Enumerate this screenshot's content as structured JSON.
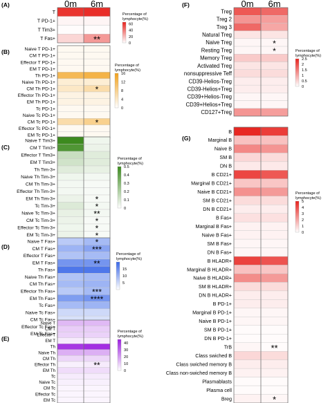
{
  "columns": [
    "0m",
    "6m"
  ],
  "legend_title_lines": [
    "Percentage of",
    "lymphocyte(%)"
  ],
  "chart_data": [
    {
      "type": "heatmap",
      "panel": "(A)",
      "colors": [
        "#ffffff",
        "#e8231e"
      ],
      "vmin": 0,
      "vmax": 65,
      "legend_ticks": [
        60,
        40,
        20,
        0
      ],
      "rows": [
        {
          "label": "T",
          "values": [
            60,
            62
          ],
          "mark": ""
        },
        {
          "label": "T PD-1+",
          "values": [
            3,
            3
          ],
          "mark": ""
        },
        {
          "label": "T Tim3+",
          "values": [
            1,
            1
          ],
          "mark": ""
        },
        {
          "label": "T Fas+",
          "values": [
            12,
            30
          ],
          "mark": "**"
        }
      ]
    },
    {
      "type": "heatmap",
      "panel": "(B)",
      "colors": [
        "#ffffff",
        "#f2a21c"
      ],
      "vmin": 0,
      "vmax": 16,
      "legend_ticks": [
        16,
        12,
        8,
        4,
        0
      ],
      "rows": [
        {
          "label": "Naive T PD-1+",
          "values": [
            1,
            1
          ],
          "mark": ""
        },
        {
          "label": "CM T PD-1+",
          "values": [
            1,
            1
          ],
          "mark": ""
        },
        {
          "label": "Effector T PD-1+",
          "values": [
            1,
            1
          ],
          "mark": ""
        },
        {
          "label": "EM T PD-1+",
          "values": [
            1,
            1
          ],
          "mark": ""
        },
        {
          "label": "Th PD-1+",
          "values": [
            12,
            13
          ],
          "mark": ""
        },
        {
          "label": "Naive Th PD-1+",
          "values": [
            3,
            3
          ],
          "mark": ""
        },
        {
          "label": "CM Th PD-1+",
          "values": [
            4,
            6
          ],
          "mark": "*"
        },
        {
          "label": "Effector Th PD-1+",
          "values": [
            2,
            2
          ],
          "mark": ""
        },
        {
          "label": "EM Th PD-1+",
          "values": [
            2,
            2
          ],
          "mark": ""
        },
        {
          "label": "Tc PD-1+",
          "values": [
            1,
            1
          ],
          "mark": ""
        },
        {
          "label": "Naive Tc PD-1+",
          "values": [
            1,
            1
          ],
          "mark": ""
        },
        {
          "label": "CM Tc PD-1+",
          "values": [
            6,
            8
          ],
          "mark": "*"
        },
        {
          "label": "Effector Tc PD-1+",
          "values": [
            1,
            1
          ],
          "mark": ""
        },
        {
          "label": "EM Tc PD-1+",
          "values": [
            1,
            1
          ],
          "mark": ""
        }
      ]
    },
    {
      "type": "heatmap",
      "panel": "(C)",
      "colors": [
        "#ffffff",
        "#3c8a1e"
      ],
      "vmin": 0,
      "vmax": 0.5,
      "legend_ticks": [
        0.5,
        0.4,
        0.3,
        0.2,
        0.1,
        0.0
      ],
      "rows": [
        {
          "label": "Naive T Tim3+",
          "values": [
            0.5,
            0.04
          ],
          "mark": ""
        },
        {
          "label": "CM T Tim3+",
          "values": [
            0.45,
            0.05
          ],
          "mark": ""
        },
        {
          "label": "Effector T Tim3+",
          "values": [
            0.14,
            0.08
          ],
          "mark": ""
        },
        {
          "label": "EM T Tim3+",
          "values": [
            0.12,
            0.08
          ],
          "mark": ""
        },
        {
          "label": "Th Tim-3+",
          "values": [
            0.08,
            0.06
          ],
          "mark": ""
        },
        {
          "label": "Naive Th Tim-3+",
          "values": [
            0.04,
            0.03
          ],
          "mark": ""
        },
        {
          "label": "CM Th Tim-3+",
          "values": [
            0.03,
            0.02
          ],
          "mark": ""
        },
        {
          "label": "Effector Th Tim-3+",
          "values": [
            0.03,
            0.02
          ],
          "mark": ""
        },
        {
          "label": "EM Th Tim-3+",
          "values": [
            0.05,
            0.02
          ],
          "mark": "*"
        },
        {
          "label": "Tc Tim-3+",
          "values": [
            0.09,
            0.03
          ],
          "mark": "*"
        },
        {
          "label": "Naive Tc Tim-3+",
          "values": [
            0.06,
            0.03
          ],
          "mark": "**"
        },
        {
          "label": "CM Tc Tim-3+",
          "values": [
            0.05,
            0.02
          ],
          "mark": "*"
        },
        {
          "label": "Effector Tc Tim-3+",
          "values": [
            0.04,
            0.02
          ],
          "mark": "*"
        },
        {
          "label": "EM Tc Tim-3+",
          "values": [
            0.05,
            0.02
          ],
          "mark": "*"
        }
      ]
    },
    {
      "type": "heatmap",
      "panel": "(D)",
      "colors": [
        "#ffffff",
        "#3a68e8"
      ],
      "vmin": 0,
      "vmax": 20,
      "legend_ticks": [
        15,
        10,
        5
      ],
      "rows": [
        {
          "label": "Naive T Fas+",
          "values": [
            7,
            9
          ],
          "mark": "*"
        },
        {
          "label": "CM T Fas+",
          "values": [
            10,
            12
          ],
          "mark": "***"
        },
        {
          "label": "Effector T Fas+",
          "values": [
            8,
            9
          ],
          "mark": ""
        },
        {
          "label": "EM T Fas+",
          "values": [
            14,
            14
          ],
          "mark": "**"
        },
        {
          "label": "Th Fas+",
          "values": [
            18,
            18
          ],
          "mark": ""
        },
        {
          "label": "Naive Th Fas+",
          "values": [
            8,
            9
          ],
          "mark": ""
        },
        {
          "label": "CM Th Fas+",
          "values": [
            9,
            10
          ],
          "mark": ""
        },
        {
          "label": "Effector Th Fas+",
          "values": [
            7,
            9
          ],
          "mark": "***"
        },
        {
          "label": "EM Th Fas+",
          "values": [
            13,
            14
          ],
          "mark": "****"
        },
        {
          "label": "Tc Fas+",
          "values": [
            9,
            10
          ],
          "mark": ""
        },
        {
          "label": "Naive Tc Fas+",
          "values": [
            5,
            5
          ],
          "mark": ""
        },
        {
          "label": "CM Tc Fas+",
          "values": [
            4,
            4
          ],
          "mark": ""
        },
        {
          "label": "Effector Tc Fas+",
          "values": [
            3,
            3
          ],
          "mark": ""
        },
        {
          "label": "EM Tc Fas+",
          "values": [
            3,
            3
          ],
          "mark": ""
        }
      ]
    },
    {
      "type": "heatmap",
      "panel": "(E)",
      "colors": [
        "#ffffff",
        "#9c1fe0"
      ],
      "vmin": 0,
      "vmax": 45,
      "legend_ticks": [
        40,
        30,
        20,
        10,
        0
      ],
      "rows": [
        {
          "label": "Naive T",
          "values": [
            14,
            14
          ],
          "mark": ""
        },
        {
          "label": "CM T",
          "values": [
            10,
            10
          ],
          "mark": ""
        },
        {
          "label": "Effector T",
          "values": [
            9,
            9
          ],
          "mark": ""
        },
        {
          "label": "EM T",
          "values": [
            4,
            4
          ],
          "mark": ""
        },
        {
          "label": "Th",
          "values": [
            40,
            42
          ],
          "mark": ""
        },
        {
          "label": "Naive Th",
          "values": [
            16,
            16
          ],
          "mark": ""
        },
        {
          "label": "CM Th",
          "values": [
            8,
            8
          ],
          "mark": ""
        },
        {
          "label": "Effector Th",
          "values": [
            3,
            4
          ],
          "mark": "**"
        },
        {
          "label": "EM Th",
          "values": [
            7,
            7
          ],
          "mark": ""
        },
        {
          "label": "Tc",
          "values": [
            4,
            4
          ],
          "mark": ""
        },
        {
          "label": "Naive Tc",
          "values": [
            3,
            3
          ],
          "mark": ""
        },
        {
          "label": "CM Tc",
          "values": [
            2,
            2
          ],
          "mark": ""
        },
        {
          "label": "Effector Tc",
          "values": [
            2,
            2
          ],
          "mark": ""
        },
        {
          "label": "EM Tc",
          "values": [
            2,
            2
          ],
          "mark": ""
        }
      ]
    },
    {
      "type": "heatmap",
      "panel": "(F)",
      "colors": [
        "#ffffff",
        "#e8231e"
      ],
      "vmin": 0,
      "vmax": 2.5,
      "legend_ticks": [
        2.5,
        2,
        1.5,
        1,
        0.5,
        0
      ],
      "rows": [
        {
          "label": "Treg",
          "values": [
            1.9,
            1.7
          ],
          "mark": ""
        },
        {
          "label": "Treg 2",
          "values": [
            1.2,
            1.1
          ],
          "mark": ""
        },
        {
          "label": "Treg 3",
          "values": [
            1.7,
            1.0
          ],
          "mark": ""
        },
        {
          "label": "Natural Treg",
          "values": [
            0.3,
            0.3
          ],
          "mark": ""
        },
        {
          "label": "Naive Treg",
          "values": [
            0.1,
            0.1
          ],
          "mark": "*"
        },
        {
          "label": "Resting Treg",
          "values": [
            0.1,
            0.1
          ],
          "mark": "*"
        },
        {
          "label": "Memory Treg",
          "values": [
            0.6,
            0.6
          ],
          "mark": ""
        },
        {
          "label": "Activated Treg",
          "values": [
            0.3,
            0.3
          ],
          "mark": ""
        },
        {
          "label": "nonsuppressive Teff",
          "values": [
            0.4,
            0.4
          ],
          "mark": ""
        },
        {
          "label": "CD39-Helios-Treg",
          "values": [
            0.2,
            0.2
          ],
          "mark": ""
        },
        {
          "label": "CD39-Helios+Treg",
          "values": [
            0.2,
            0.2
          ],
          "mark": ""
        },
        {
          "label": "CD39+Helios-Treg",
          "values": [
            0.1,
            0.1
          ],
          "mark": ""
        },
        {
          "label": "CD39+Helios+Treg",
          "values": [
            0.1,
            0.1
          ],
          "mark": ""
        },
        {
          "label": "CD127+Treg",
          "values": [
            1.2,
            1.1
          ],
          "mark": ""
        }
      ]
    },
    {
      "type": "heatmap",
      "panel": "(G)",
      "colors": [
        "#ffffff",
        "#e8231e"
      ],
      "vmin": 0,
      "vmax": 5,
      "legend_ticks": [
        5,
        4,
        3,
        2,
        1,
        0
      ],
      "rows": [
        {
          "label": "B",
          "values": [
            4.9,
            4.4
          ],
          "mark": ""
        },
        {
          "label": "Marginal B",
          "values": [
            1.4,
            1.4
          ],
          "mark": ""
        },
        {
          "label": "Naive B",
          "values": [
            2.7,
            2.4
          ],
          "mark": ""
        },
        {
          "label": "SM B",
          "values": [
            0.9,
            0.8
          ],
          "mark": ""
        },
        {
          "label": "DN B",
          "values": [
            0.5,
            0.5
          ],
          "mark": ""
        },
        {
          "label": "B CD21+",
          "values": [
            4.2,
            3.8
          ],
          "mark": ""
        },
        {
          "label": "Marginal B CD21+",
          "values": [
            1.3,
            1.3
          ],
          "mark": ""
        },
        {
          "label": "Naive B CD21+",
          "values": [
            2.5,
            2.3
          ],
          "mark": ""
        },
        {
          "label": "SM B CD21+",
          "values": [
            0.8,
            0.8
          ],
          "mark": ""
        },
        {
          "label": "DN B CD21+",
          "values": [
            0.4,
            0.4
          ],
          "mark": ""
        },
        {
          "label": "B Fas+",
          "values": [
            0.7,
            0.7
          ],
          "mark": ""
        },
        {
          "label": "Marginal B Fas+",
          "values": [
            0.3,
            0.3
          ],
          "mark": ""
        },
        {
          "label": "Naive B Fas+",
          "values": [
            0.3,
            0.3
          ],
          "mark": ""
        },
        {
          "label": "SM B Fas+",
          "values": [
            0.2,
            0.2
          ],
          "mark": ""
        },
        {
          "label": "DN B Fas+",
          "values": [
            0.2,
            0.2
          ],
          "mark": ""
        },
        {
          "label": "B HLADR+",
          "values": [
            4.3,
            3.9
          ],
          "mark": ""
        },
        {
          "label": "Marginal B HLADR+",
          "values": [
            1.4,
            1.3
          ],
          "mark": ""
        },
        {
          "label": "Naive B HLADR+",
          "values": [
            2.6,
            2.3
          ],
          "mark": ""
        },
        {
          "label": "SM B HLADR+",
          "values": [
            0.8,
            0.8
          ],
          "mark": ""
        },
        {
          "label": "DN B HLADR+",
          "values": [
            0.4,
            0.4
          ],
          "mark": ""
        },
        {
          "label": "B PD-1+",
          "values": [
            0.4,
            0.4
          ],
          "mark": ""
        },
        {
          "label": "Marginal B PD-1+",
          "values": [
            0.2,
            0.2
          ],
          "mark": ""
        },
        {
          "label": "Naive B PD-1+",
          "values": [
            0.2,
            0.2
          ],
          "mark": ""
        },
        {
          "label": "SM B PD-1+",
          "values": [
            0.1,
            0.1
          ],
          "mark": ""
        },
        {
          "label": "DN B PD-1+",
          "values": [
            0.1,
            0.1
          ],
          "mark": ""
        },
        {
          "label": "TrB",
          "values": [
            0.2,
            0.1
          ],
          "mark": "**"
        },
        {
          "label": "Class swiched B",
          "values": [
            0.9,
            0.8
          ],
          "mark": ""
        },
        {
          "label": "Class swiched memory B",
          "values": [
            0.4,
            0.4
          ],
          "mark": ""
        },
        {
          "label": "Class non-swiched memory B",
          "values": [
            0.3,
            0.3
          ],
          "mark": ""
        },
        {
          "label": "Plasmablasts",
          "values": [
            0.1,
            0.1
          ],
          "mark": ""
        },
        {
          "label": "Plasma cell",
          "values": [
            0.1,
            0.1
          ],
          "mark": ""
        },
        {
          "label": "Breg",
          "values": [
            0.3,
            0.2
          ],
          "mark": "*"
        }
      ]
    }
  ]
}
